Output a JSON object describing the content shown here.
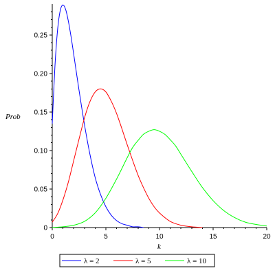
{
  "chart_data": {
    "type": "line",
    "title": "",
    "xlabel": "k",
    "ylabel": "Prob",
    "xlim": [
      0,
      20
    ],
    "ylim": [
      0,
      0.29
    ],
    "x_ticks": [
      0,
      5,
      10,
      15,
      20
    ],
    "y_ticks": [
      0,
      0.05,
      0.1,
      0.15,
      0.2,
      0.25
    ],
    "x_tick_labels": [
      "0",
      "5",
      "10",
      "15",
      "20"
    ],
    "y_tick_labels": [
      "0",
      "0.05",
      "0.10",
      "0.15",
      "0.20",
      "0.25"
    ],
    "grid": false,
    "legend_position": "bottom",
    "series": [
      {
        "name": "λ = 2",
        "color": "#0000ff",
        "x": [
          0,
          0.25,
          0.5,
          0.75,
          1,
          1.25,
          1.5,
          1.75,
          2,
          2.5,
          3,
          3.5,
          4,
          4.5,
          5,
          5.5,
          6,
          6.5,
          7,
          7.5,
          8,
          8.5
        ],
        "y": [
          0.135,
          0.209,
          0.257,
          0.282,
          0.289,
          0.283,
          0.268,
          0.248,
          0.225,
          0.178,
          0.134,
          0.096,
          0.065,
          0.043,
          0.027,
          0.016,
          0.009,
          0.005,
          0.003,
          0.001,
          0.001,
          0.0
        ]
      },
      {
        "name": "λ = 5",
        "color": "#ff0000",
        "x": [
          0,
          0.5,
          1,
          1.5,
          2,
          2.5,
          3,
          3.5,
          4,
          4.5,
          5,
          5.5,
          6,
          6.5,
          7,
          7.5,
          8,
          8.5,
          9,
          9.5,
          10,
          11,
          12,
          13,
          14
        ],
        "y": [
          0.007,
          0.018,
          0.036,
          0.059,
          0.087,
          0.115,
          0.142,
          0.163,
          0.176,
          0.18,
          0.176,
          0.164,
          0.148,
          0.128,
          0.107,
          0.087,
          0.068,
          0.052,
          0.038,
          0.027,
          0.019,
          0.008,
          0.003,
          0.001,
          0.0
        ]
      },
      {
        "name": "λ = 10",
        "color": "#00ff00",
        "x": [
          0,
          1,
          2,
          3,
          4,
          5,
          6,
          7,
          7.5,
          8,
          8.5,
          9,
          9.5,
          10,
          10.5,
          11,
          11.5,
          12,
          13,
          14,
          15,
          16,
          17,
          18,
          19,
          20
        ],
        "y": [
          0.0,
          0.001,
          0.003,
          0.008,
          0.019,
          0.038,
          0.063,
          0.091,
          0.104,
          0.113,
          0.121,
          0.125,
          0.127,
          0.125,
          0.121,
          0.114,
          0.106,
          0.095,
          0.073,
          0.052,
          0.035,
          0.022,
          0.013,
          0.007,
          0.004,
          0.002
        ]
      }
    ]
  }
}
